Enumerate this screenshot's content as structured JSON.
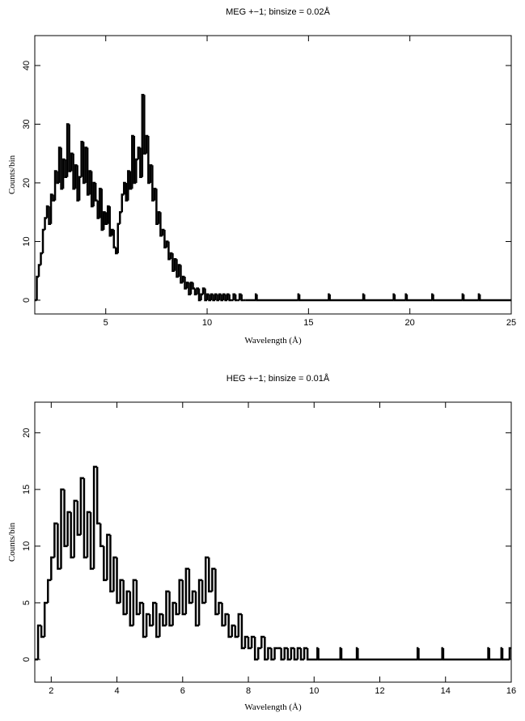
{
  "chart_data": [
    {
      "type": "step",
      "title": "MEG +−1; binsize = 0.02Å",
      "xlabel": "Wavelength (Å)",
      "ylabel": "Counts/bin",
      "color": "#000000",
      "xlim": [
        1.5,
        25
      ],
      "ylim": [
        -2.35,
        45.1
      ],
      "xticks": [
        5,
        10,
        15,
        20,
        25
      ],
      "yticks": [
        0,
        10,
        20,
        30,
        40
      ],
      "x": [
        1.5,
        1.6,
        1.7,
        1.8,
        1.9,
        2.0,
        2.1,
        2.2,
        2.3,
        2.4,
        2.5,
        2.6,
        2.7,
        2.8,
        2.9,
        3.0,
        3.1,
        3.2,
        3.3,
        3.4,
        3.5,
        3.6,
        3.7,
        3.8,
        3.9,
        4.0,
        4.1,
        4.2,
        4.3,
        4.4,
        4.5,
        4.6,
        4.7,
        4.8,
        4.9,
        5.0,
        5.1,
        5.2,
        5.3,
        5.4,
        5.5,
        5.6,
        5.7,
        5.8,
        5.9,
        6.0,
        6.1,
        6.2,
        6.3,
        6.4,
        6.5,
        6.6,
        6.7,
        6.8,
        6.9,
        7.0,
        7.1,
        7.2,
        7.3,
        7.4,
        7.5,
        7.6,
        7.7,
        7.8,
        7.9,
        8.0,
        8.1,
        8.2,
        8.3,
        8.4,
        8.5,
        8.6,
        8.7,
        8.8,
        8.9,
        9.0,
        9.1,
        9.2,
        9.3,
        9.4,
        9.5,
        9.6,
        9.7,
        9.8,
        9.9,
        10.0,
        10.1,
        10.2,
        10.3,
        10.4,
        10.5,
        10.6,
        10.7,
        10.8,
        10.9,
        11.0,
        11.1,
        11.2,
        11.3,
        11.4,
        11.5,
        11.6,
        11.7,
        11.8,
        11.9,
        12.4,
        12.45,
        14.5,
        14.55,
        16.0,
        16.05,
        17.7,
        17.75,
        19.2,
        19.25,
        19.8,
        19.85,
        21.1,
        21.15,
        22.6,
        22.65,
        23.4,
        23.45
      ],
      "values": [
        0,
        4,
        6,
        8,
        12,
        14,
        16,
        13,
        18,
        17,
        22,
        20,
        26,
        19,
        24,
        21,
        30,
        22,
        25,
        19,
        23,
        17,
        21,
        27,
        20,
        26,
        18,
        22,
        16,
        20,
        17,
        14,
        19,
        12,
        15,
        13,
        16,
        11,
        12,
        9,
        8,
        13,
        15,
        18,
        20,
        17,
        22,
        19,
        28,
        20,
        24,
        26,
        21,
        35,
        25,
        28,
        20,
        23,
        17,
        19,
        13,
        15,
        11,
        12,
        9,
        10,
        7,
        8,
        5,
        7,
        4,
        6,
        3,
        4,
        2,
        3,
        1,
        3,
        2,
        1,
        2,
        0,
        1,
        2,
        0,
        1,
        0,
        1,
        0,
        1,
        0,
        1,
        0,
        1,
        0,
        1,
        0,
        0,
        1,
        0,
        0,
        1,
        0,
        0,
        0,
        1,
        0,
        1,
        0,
        1,
        0,
        1,
        0,
        1,
        0,
        1,
        0,
        1,
        0,
        1,
        0,
        1,
        0
      ]
    },
    {
      "type": "step",
      "title": "HEG +−1; binsize = 0.01Å",
      "xlabel": "Wavelength (Å)",
      "ylabel": "Counts/bin",
      "color": "#000000",
      "xlim": [
        1.5,
        16
      ],
      "ylim": [
        -2,
        22.7
      ],
      "xticks": [
        2,
        4,
        6,
        8,
        10,
        12,
        14,
        16
      ],
      "yticks": [
        0,
        5,
        10,
        15,
        20
      ],
      "x": [
        1.5,
        1.6,
        1.7,
        1.8,
        1.9,
        2.0,
        2.1,
        2.2,
        2.3,
        2.4,
        2.5,
        2.6,
        2.7,
        2.8,
        2.9,
        3.0,
        3.1,
        3.2,
        3.3,
        3.4,
        3.5,
        3.6,
        3.7,
        3.8,
        3.9,
        4.0,
        4.1,
        4.2,
        4.3,
        4.4,
        4.5,
        4.6,
        4.7,
        4.8,
        4.9,
        5.0,
        5.1,
        5.2,
        5.3,
        5.4,
        5.5,
        5.6,
        5.7,
        5.8,
        5.9,
        6.0,
        6.1,
        6.2,
        6.3,
        6.4,
        6.5,
        6.6,
        6.7,
        6.8,
        6.9,
        7.0,
        7.1,
        7.2,
        7.3,
        7.4,
        7.5,
        7.6,
        7.7,
        7.8,
        7.9,
        8.0,
        8.1,
        8.2,
        8.3,
        8.4,
        8.5,
        8.6,
        8.7,
        8.8,
        8.9,
        9.0,
        9.1,
        9.2,
        9.3,
        9.4,
        9.5,
        9.6,
        9.7,
        9.8,
        10.1,
        10.13,
        10.8,
        10.83,
        11.3,
        11.33,
        13.15,
        13.18,
        13.9,
        13.93,
        15.3,
        15.33,
        15.7,
        15.73,
        15.95
      ],
      "values": [
        0,
        3,
        2,
        5,
        7,
        9,
        12,
        8,
        15,
        10,
        13,
        9,
        14,
        11,
        16,
        9,
        13,
        8,
        17,
        12,
        10,
        7,
        11,
        6,
        9,
        5,
        7,
        4,
        6,
        3,
        7,
        4,
        5,
        2,
        4,
        3,
        5,
        2,
        4,
        3,
        6,
        3,
        5,
        4,
        7,
        4,
        8,
        5,
        6,
        3,
        7,
        5,
        9,
        6,
        8,
        4,
        5,
        3,
        4,
        2,
        3,
        2,
        4,
        1,
        2,
        1,
        2,
        0,
        1,
        2,
        0,
        1,
        0,
        1,
        1,
        0,
        1,
        0,
        1,
        0,
        1,
        0,
        1,
        0,
        1,
        0,
        1,
        0,
        1,
        0,
        1,
        0,
        1,
        0,
        1,
        0,
        1,
        0,
        1
      ]
    }
  ]
}
